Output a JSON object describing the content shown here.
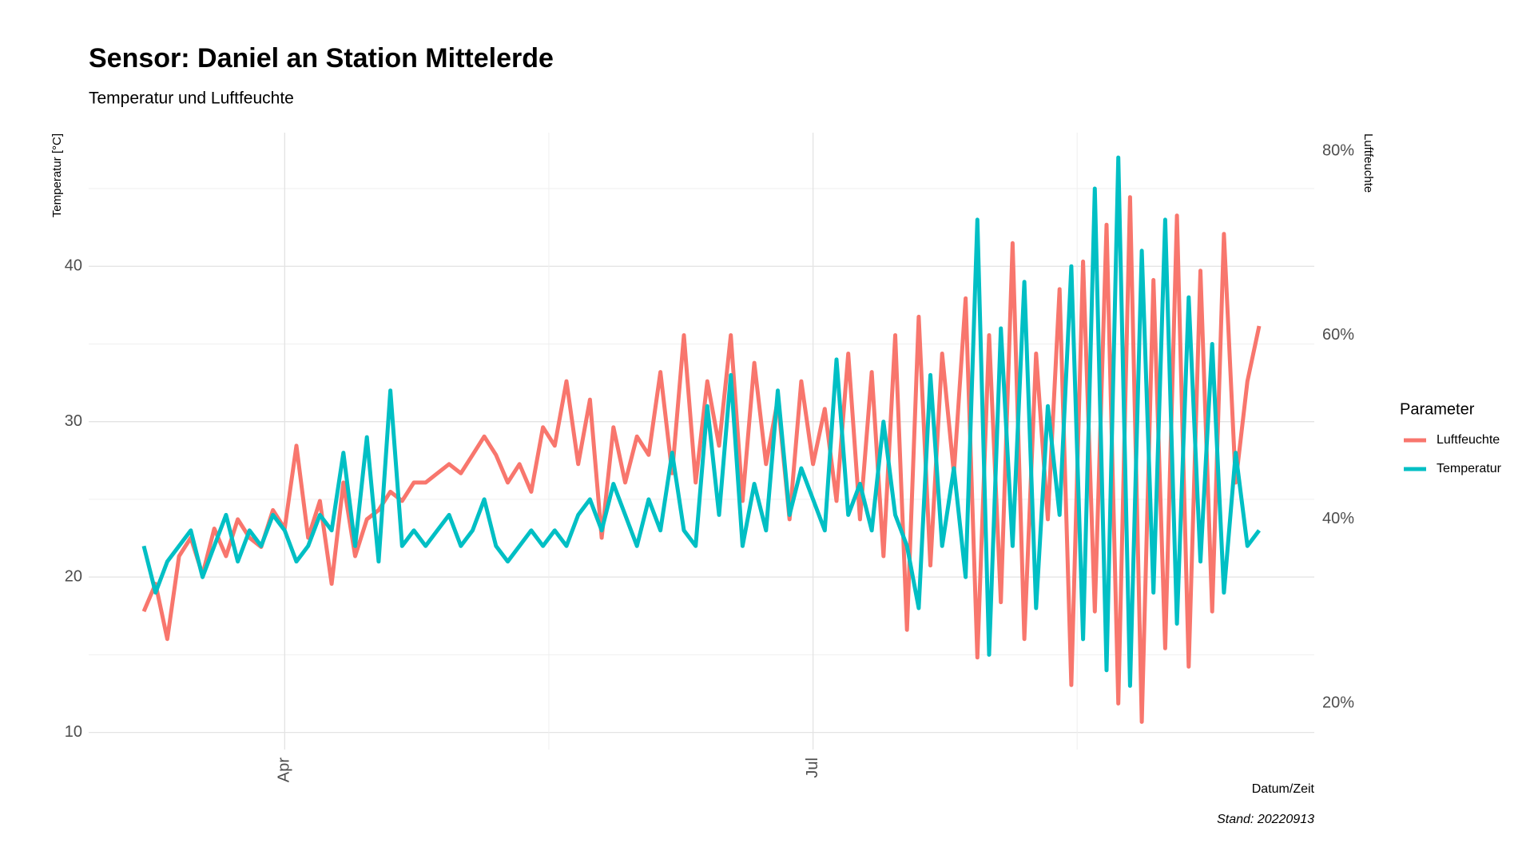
{
  "chart_data": {
    "type": "line",
    "title": "Sensor: Daniel an Station Mittelerde",
    "subtitle": "Temperatur und Luftfeuchte",
    "y_label": "Temperatur [°C]",
    "y2_label": "Luftfeuchte",
    "x_label": "Datum/Zeit",
    "caption": "Stand: 20220913",
    "legend_title": "Parameter",
    "legend": "right",
    "grid": true,
    "categories": [
      null,
      null,
      null,
      null,
      null,
      null,
      null,
      null,
      null,
      null,
      null,
      null,
      "Apr",
      null,
      null,
      null,
      null,
      null,
      null,
      null,
      null,
      null,
      null,
      null,
      null,
      null,
      null,
      null,
      null,
      null,
      null,
      null,
      null,
      null,
      null,
      null,
      null,
      null,
      null,
      null,
      null,
      null,
      null,
      null,
      null,
      null,
      null,
      null,
      null,
      null,
      null,
      null,
      null,
      null,
      null,
      null,
      null,
      "Jul",
      null,
      null,
      null,
      null,
      null,
      null,
      null,
      null,
      null,
      null,
      null,
      null,
      null,
      null,
      null,
      null,
      null,
      null,
      null,
      null,
      null,
      null,
      null,
      null,
      null,
      null,
      null,
      null,
      null,
      null,
      null,
      null,
      null,
      null,
      null,
      null,
      null,
      null
    ],
    "ylim": [
      8.9,
      48.6
    ],
    "yticks": [
      10,
      20,
      30,
      40
    ],
    "y2lim": [
      15.0,
      82.0
    ],
    "y2ticks": [
      {
        "value": 20,
        "label": "20%"
      },
      {
        "value": 40,
        "label": "40%"
      },
      {
        "value": 60,
        "label": "60%"
      },
      {
        "value": 80,
        "label": "80%"
      }
    ],
    "series": [
      {
        "name": "Luftfeuchte",
        "color": "#F8766D",
        "axis": "y2",
        "values": [
          30,
          33,
          27,
          36,
          38,
          34,
          39,
          36,
          40,
          38,
          37,
          41,
          39,
          48,
          38,
          42,
          33,
          44,
          36,
          40,
          41,
          43,
          42,
          44,
          44,
          45,
          46,
          45,
          47,
          49,
          47,
          44,
          46,
          43,
          50,
          48,
          55,
          46,
          53,
          38,
          50,
          44,
          49,
          47,
          56,
          45,
          60,
          44,
          55,
          48,
          60,
          42,
          57,
          46,
          53,
          40,
          55,
          46,
          52,
          42,
          58,
          40,
          56,
          36,
          60,
          28,
          62,
          35,
          58,
          45,
          64,
          25,
          60,
          31,
          70,
          27,
          58,
          40,
          65,
          22,
          68,
          30,
          72,
          20,
          75,
          18,
          66,
          26,
          73,
          24,
          67,
          30,
          71,
          44,
          55,
          61
        ]
      },
      {
        "name": "Temperatur",
        "color": "#00BFC4",
        "values": [
          22,
          19,
          21,
          22,
          23,
          20,
          22,
          24,
          21,
          23,
          22,
          24,
          23,
          21,
          22,
          24,
          23,
          28,
          22,
          29,
          21,
          32,
          22,
          23,
          22,
          23,
          24,
          22,
          23,
          25,
          22,
          21,
          22,
          23,
          22,
          23,
          22,
          24,
          25,
          23,
          26,
          24,
          22,
          25,
          23,
          28,
          23,
          22,
          31,
          24,
          33,
          22,
          26,
          23,
          32,
          24,
          27,
          25,
          23,
          34,
          24,
          26,
          23,
          30,
          24,
          22,
          18,
          33,
          22,
          27,
          20,
          43,
          15,
          36,
          22,
          39,
          18,
          31,
          24,
          40,
          16,
          45,
          14,
          47,
          13,
          41,
          19,
          43,
          17,
          38,
          21,
          35,
          19,
          28,
          22,
          23
        ]
      }
    ]
  }
}
